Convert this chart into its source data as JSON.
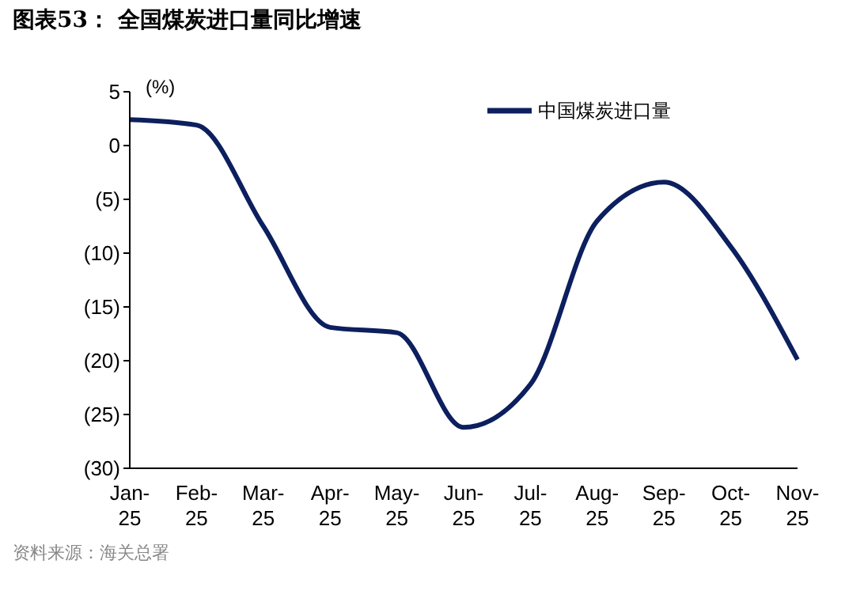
{
  "chart_data": {
    "type": "line",
    "title": "图表53：  全国煤炭进口量同比增速",
    "ylabel": "(%)",
    "categories": [
      "Jan-25",
      "Feb-25",
      "Mar-25",
      "Apr-25",
      "May-25",
      "Jun-25",
      "Jul-25",
      "Aug-25",
      "Sep-25",
      "Oct-25",
      "Nov-25"
    ],
    "series": [
      {
        "name": "中国煤炭进口量",
        "color": "#0c1f5e",
        "values": [
          2.4,
          1.9,
          -7.5,
          -16.9,
          -17.4,
          -26.2,
          -22.2,
          -7.0,
          -3.4,
          -9.4,
          -19.9
        ]
      }
    ],
    "ylim": [
      -30,
      5
    ],
    "yticks": [
      5,
      0,
      {
        "value": -5,
        "label": "(5)"
      },
      {
        "value": -10,
        "label": "(10)"
      },
      {
        "value": -15,
        "label": "(15)"
      },
      {
        "value": -20,
        "label": "(20)"
      },
      {
        "value": -25,
        "label": "(25)"
      },
      {
        "value": -30,
        "label": "(30)"
      }
    ],
    "grid": false,
    "legend": "top right",
    "marker": "none",
    "line_style": "solid",
    "annotations": [
      "资料来源：海关总署"
    ]
  }
}
